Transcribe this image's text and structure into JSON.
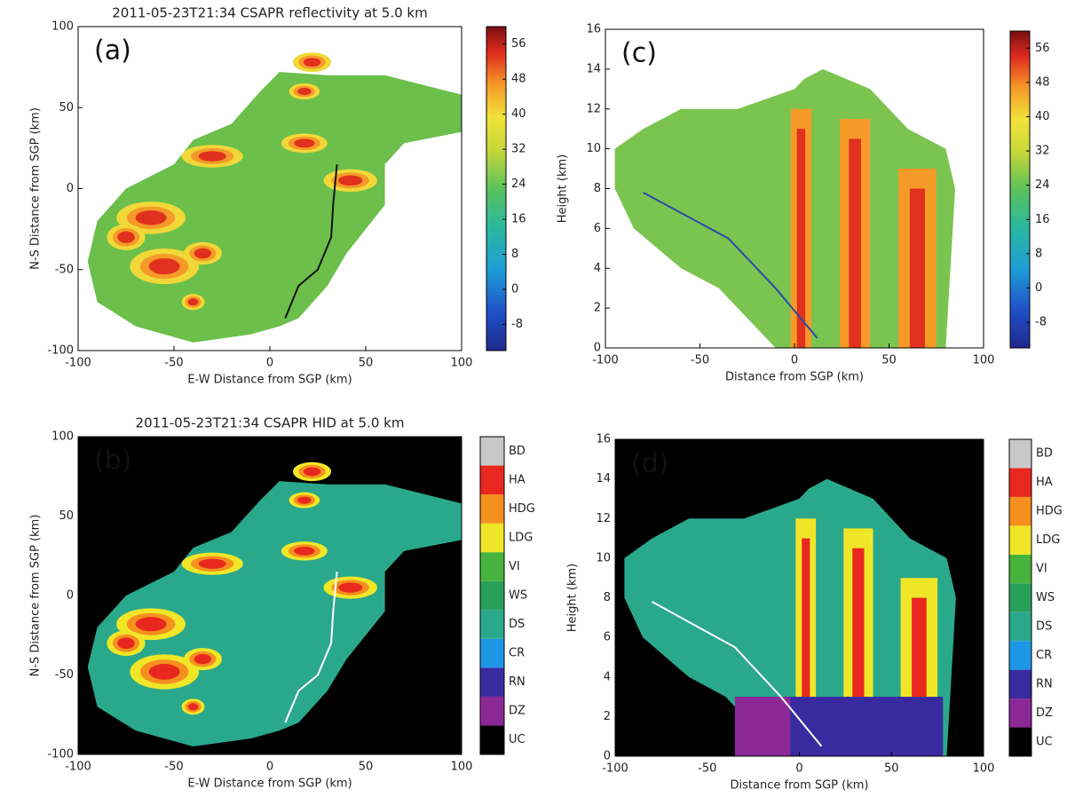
{
  "chart_data": [
    {
      "type": "heatmap",
      "title": "2011-05-23T21:34 CSAPR reflectivity at 5.0 km",
      "panel_label": "(a)",
      "x_label": "E-W Distance from SGP (km)",
      "y_label": "N-S Distance from SGP (km)",
      "xlim": [
        -100,
        100
      ],
      "xticks": [
        -100,
        -50,
        0,
        50,
        100
      ],
      "ylim": [
        -100,
        100
      ],
      "yticks": [
        -100,
        -50,
        0,
        50,
        100
      ],
      "colorbar": {
        "clim": [
          -14,
          60
        ],
        "ticks": [
          -8,
          0,
          8,
          16,
          24,
          32,
          40,
          48,
          56
        ]
      }
    },
    {
      "type": "category-map",
      "title": "2011-05-23T21:34 CSAPR HID at 5.0 km",
      "panel_label": "(b)",
      "x_label": "E-W Distance from SGP (km)",
      "y_label": "N-S Distance from SGP (km)",
      "xlim": [
        -100,
        100
      ],
      "xticks": [
        -100,
        -50,
        0,
        50,
        100
      ],
      "ylim": [
        -100,
        100
      ],
      "yticks": [
        -100,
        -50,
        0,
        50,
        100
      ],
      "background": "#000000",
      "classes": [
        {
          "name": "UC",
          "color": "#000000"
        },
        {
          "name": "DZ",
          "color": "#8c2896"
        },
        {
          "name": "RN",
          "color": "#3a2aa0"
        },
        {
          "name": "CR",
          "color": "#1e96e6"
        },
        {
          "name": "DS",
          "color": "#2aa88c"
        },
        {
          "name": "WS",
          "color": "#28a05a"
        },
        {
          "name": "VI",
          "color": "#46b43c"
        },
        {
          "name": "LDG",
          "color": "#f0e628"
        },
        {
          "name": "HDG",
          "color": "#f5901e"
        },
        {
          "name": "HA",
          "color": "#e8281e"
        },
        {
          "name": "BD",
          "color": "#c8c8c8"
        }
      ]
    },
    {
      "type": "heatmap",
      "panel_label": "(c)",
      "x_label": "Distance from SGP (km)",
      "y_label": "Height (km)",
      "xlim": [
        -100,
        100
      ],
      "xticks": [
        -100,
        -50,
        0,
        50,
        100
      ],
      "ylim": [
        0,
        16
      ],
      "yticks": [
        0,
        2,
        4,
        6,
        8,
        10,
        12,
        14,
        16
      ],
      "colorbar": {
        "clim": [
          -14,
          60
        ],
        "ticks": [
          -8,
          0,
          8,
          16,
          24,
          32,
          40,
          48,
          56
        ]
      }
    },
    {
      "type": "category-map",
      "panel_label": "(d)",
      "x_label": "Distance from SGP (km)",
      "y_label": "Height (km)",
      "xlim": [
        -100,
        100
      ],
      "xticks": [
        -100,
        -50,
        0,
        50,
        100
      ],
      "ylim": [
        0,
        16
      ],
      "yticks": [
        0,
        2,
        4,
        6,
        8,
        10,
        12,
        14,
        16
      ],
      "background": "#000000",
      "classes": [
        {
          "name": "UC",
          "color": "#000000"
        },
        {
          "name": "DZ",
          "color": "#8c2896"
        },
        {
          "name": "RN",
          "color": "#3a2aa0"
        },
        {
          "name": "CR",
          "color": "#1e96e6"
        },
        {
          "name": "DS",
          "color": "#2aa88c"
        },
        {
          "name": "WS",
          "color": "#28a05a"
        },
        {
          "name": "VI",
          "color": "#46b43c"
        },
        {
          "name": "LDG",
          "color": "#f0e628"
        },
        {
          "name": "HDG",
          "color": "#f5901e"
        },
        {
          "name": "HA",
          "color": "#e8281e"
        },
        {
          "name": "BD",
          "color": "#c8c8c8"
        }
      ]
    }
  ]
}
